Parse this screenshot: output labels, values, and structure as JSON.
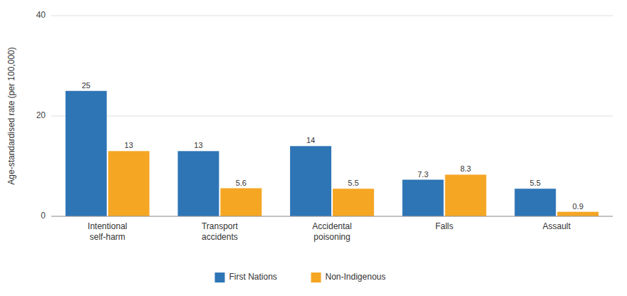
{
  "chart_data": {
    "type": "bar",
    "categories": [
      "Intentional\nself-harm",
      "Transport\naccidents",
      "Accidental\npoisoning",
      "Falls",
      "Assault"
    ],
    "series": [
      {
        "name": "First Nations",
        "color": "#2E75B6",
        "values": [
          25,
          13,
          14,
          7.3,
          5.5
        ]
      },
      {
        "name": "Non-Indigenous",
        "color": "#F5A623",
        "values": [
          13,
          5.6,
          5.5,
          8.3,
          0.9
        ]
      }
    ],
    "y_label": "Age-standardised rate (per 100,000)",
    "ylim": [
      0,
      40
    ],
    "yticks": [
      0,
      20,
      40
    ],
    "grid": true,
    "legend": "bottom",
    "data_labels": true
  }
}
